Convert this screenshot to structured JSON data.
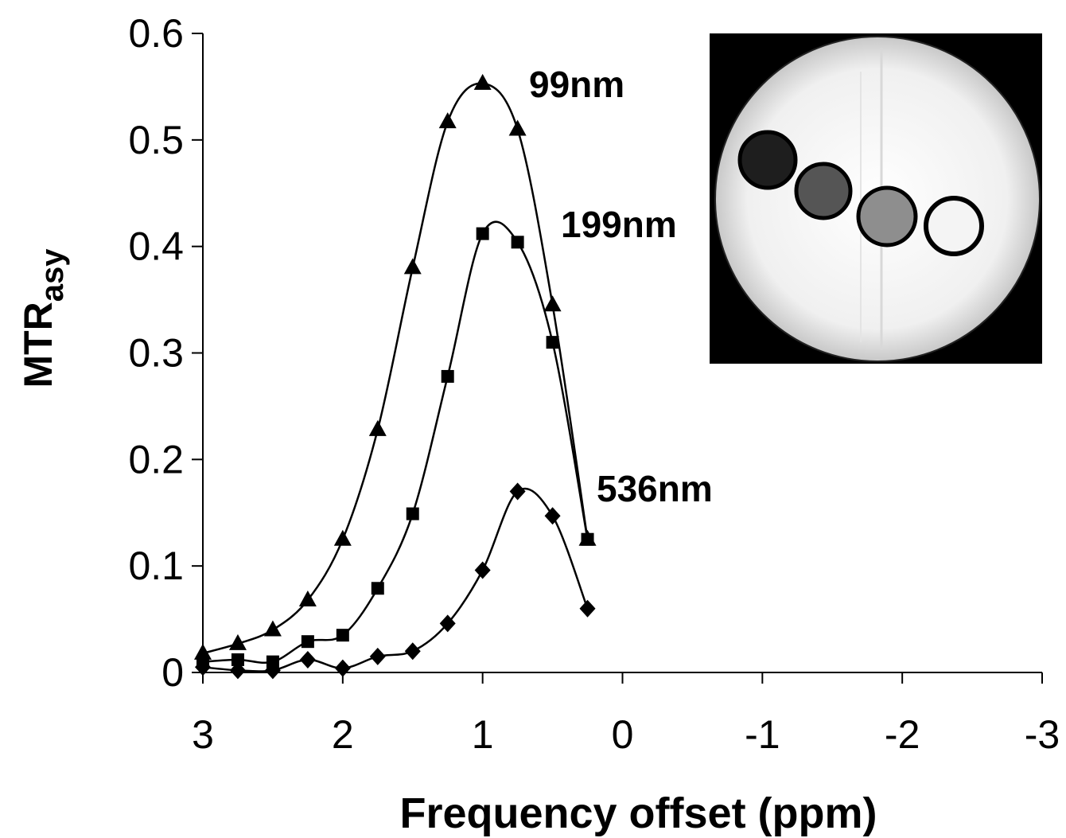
{
  "chart_data": {
    "type": "line",
    "title": "",
    "xlabel": "Frequency offset (ppm)",
    "ylabel_main": "MTR",
    "ylabel_sub": "asy",
    "xlim": [
      3,
      -3
    ],
    "x_reversed": true,
    "ylim": [
      0,
      0.6
    ],
    "x_ticks": [
      3,
      2,
      1,
      0,
      -1,
      -2,
      -3
    ],
    "x_tick_labels": [
      "3",
      "2",
      "1",
      "0",
      "-1",
      "-2",
      "-3"
    ],
    "y_ticks": [
      0,
      0.1,
      0.2,
      0.3,
      0.4,
      0.5,
      0.6
    ],
    "y_tick_labels": [
      "0",
      "0.1",
      "0.2",
      "0.3",
      "0.4",
      "0.5",
      "0.6"
    ],
    "grid": false,
    "legend": "none",
    "x": [
      3,
      2.75,
      2.5,
      2.25,
      2,
      1.75,
      1.5,
      1.25,
      1,
      0.75,
      0.5,
      0.25
    ],
    "series": [
      {
        "name": "99nm",
        "marker": "triangle",
        "values": [
          0.018,
          0.027,
          0.04,
          0.068,
          0.125,
          0.228,
          0.38,
          0.517,
          0.553,
          0.51,
          0.345,
          0.125
        ]
      },
      {
        "name": "199nm",
        "marker": "square",
        "values": [
          0.01,
          0.012,
          0.01,
          0.029,
          0.035,
          0.079,
          0.149,
          0.278,
          0.412,
          0.404,
          0.31,
          0.125
        ]
      },
      {
        "name": "536nm",
        "marker": "diamond",
        "values": [
          0.005,
          0.002,
          0.002,
          0.012,
          0.004,
          0.015,
          0.02,
          0.046,
          0.096,
          0.17,
          0.147,
          0.06
        ]
      }
    ],
    "annotations": [
      "99nm",
      "199nm",
      "536nm"
    ]
  },
  "inset": {
    "kind": "MRI phantom image",
    "vial_shades": [
      "#1e1e1e",
      "#555555",
      "#8e8e8e",
      "#f4f4f4"
    ]
  }
}
